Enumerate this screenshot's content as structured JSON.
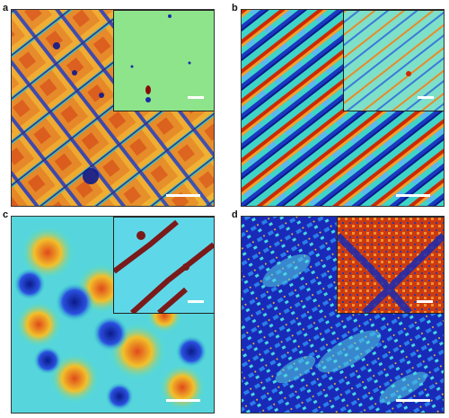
{
  "panels": [
    {
      "label": "a",
      "colormap": "jet",
      "pattern": "diagonal-blocks",
      "inset_pattern": "uniform-green"
    },
    {
      "label": "b",
      "colormap": "jet",
      "pattern": "diagonal-stripes",
      "inset_pattern": "diagonal-stripes-light"
    },
    {
      "label": "c",
      "colormap": "jet",
      "pattern": "blotches",
      "inset_pattern": "cyan-with-dark-cracks"
    },
    {
      "label": "d",
      "colormap": "jet",
      "pattern": "dark-blue-speckle",
      "inset_pattern": "red-orange-with-blue-cracks"
    }
  ],
  "colors": {
    "scale_bar": "#ffffff",
    "jet_low": "#00007f",
    "jet_mid": "#40e0d0",
    "jet_high": "#cc2a00"
  }
}
